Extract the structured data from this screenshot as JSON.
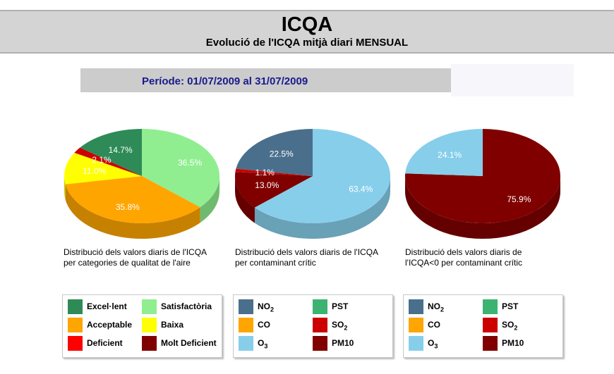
{
  "header": {
    "title": "ICQA",
    "subtitle": "Evolució de l'ICQA mitjà diari MENSUAL"
  },
  "period": "Període: 01/07/2009 al 31/07/2009",
  "chart_data": [
    {
      "type": "pie",
      "caption_lines": [
        "Distribució dels valors diaris de l'ICQA",
        "per categories de qualitat de l'aire"
      ],
      "slices": [
        {
          "label": "Satisfactòria",
          "value": 36.5,
          "value_label": "36.5%",
          "color": "#90ee90"
        },
        {
          "label": "Acceptable",
          "value": 35.8,
          "value_label": "35.8%",
          "color": "#ffa500"
        },
        {
          "label": "Baixa",
          "value": 11.0,
          "value_label": "11.0%",
          "color": "#ffff00"
        },
        {
          "label": "Deficient",
          "value": 2.1,
          "value_label": "2.1%",
          "color": "#cc0000"
        },
        {
          "label": "Excel·lent",
          "value": 14.7,
          "value_label": "14.7%",
          "color": "#2e8b57"
        }
      ]
    },
    {
      "type": "pie",
      "caption_lines": [
        "Distribució dels valors diaris de l'ICQA",
        "per contaminant crític"
      ],
      "slices": [
        {
          "label": "O3",
          "value": 63.4,
          "value_label": "63.4%",
          "color": "#87ceeb"
        },
        {
          "label": "PM10",
          "value": 13.0,
          "value_label": "13.0%",
          "color": "#800000"
        },
        {
          "label": "SO2",
          "value": 1.1,
          "value_label": "1.1%",
          "color": "#cc0000"
        },
        {
          "label": "NO2",
          "value": 22.5,
          "value_label": "22.5%",
          "color": "#4a6f8c"
        }
      ]
    },
    {
      "type": "pie",
      "caption_lines": [
        "Distribució dels valors diaris de",
        "l'ICQA<0 per contaminant crític"
      ],
      "slices": [
        {
          "label": "PM10",
          "value": 75.9,
          "value_label": "75.9%",
          "color": "#800000"
        },
        {
          "label": "O3",
          "value": 24.1,
          "value_label": "24.1%",
          "color": "#87ceeb"
        }
      ]
    }
  ],
  "legends": [
    {
      "items": [
        {
          "label": "Excel·lent",
          "color": "#2e8b57"
        },
        {
          "label": "Satisfactòria",
          "color": "#90ee90"
        },
        {
          "label": "Acceptable",
          "color": "#ffa500"
        },
        {
          "label": "Baixa",
          "color": "#ffff00"
        },
        {
          "label": "Deficient",
          "color": "#ff0000"
        },
        {
          "label": "Molt Deficient",
          "color": "#800000"
        }
      ]
    },
    {
      "items": [
        {
          "label": "NO",
          "sub": "2",
          "color": "#4a6f8c"
        },
        {
          "label": "PST",
          "color": "#3cb371"
        },
        {
          "label": "CO",
          "color": "#ffa500"
        },
        {
          "label": "SO",
          "sub": "2",
          "color": "#cc0000"
        },
        {
          "label": "O",
          "sub": "3",
          "color": "#87ceeb"
        },
        {
          "label": "PM10",
          "color": "#800000"
        }
      ]
    },
    {
      "items": [
        {
          "label": "NO",
          "sub": "2",
          "color": "#4a6f8c"
        },
        {
          "label": "PST",
          "color": "#3cb371"
        },
        {
          "label": "CO",
          "color": "#ffa500"
        },
        {
          "label": "SO",
          "sub": "2",
          "color": "#cc0000"
        },
        {
          "label": "O",
          "sub": "3",
          "color": "#87ceeb"
        },
        {
          "label": "PM10",
          "color": "#800000"
        }
      ]
    }
  ]
}
